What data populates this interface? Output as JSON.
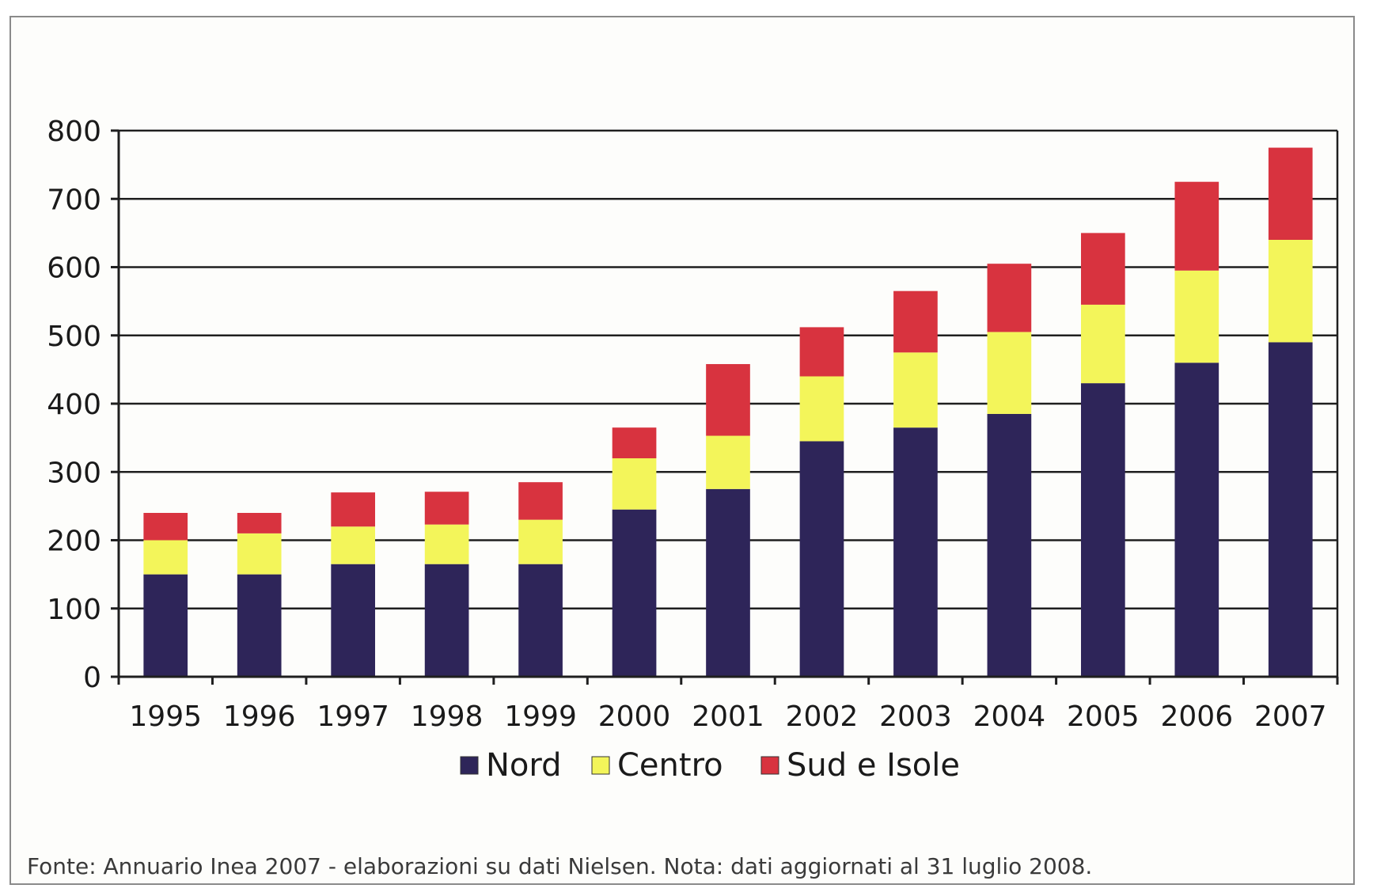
{
  "chart_data": {
    "type": "bar",
    "stacked": true,
    "categories": [
      "1995",
      "1996",
      "1997",
      "1998",
      "1999",
      "2000",
      "2001",
      "2002",
      "2003",
      "2004",
      "2005",
      "2006",
      "2007"
    ],
    "series": [
      {
        "name": "Nord",
        "color": "#2e2559",
        "values": [
          150,
          150,
          165,
          165,
          165,
          245,
          275,
          345,
          365,
          385,
          430,
          460,
          490
        ]
      },
      {
        "name": "Centro",
        "color": "#f3f55a",
        "values": [
          50,
          60,
          55,
          58,
          65,
          75,
          78,
          95,
          110,
          120,
          115,
          135,
          150
        ]
      },
      {
        "name": "Sud e Isole",
        "color": "#d8333f",
        "values": [
          40,
          30,
          50,
          48,
          55,
          45,
          105,
          72,
          90,
          100,
          105,
          130,
          135
        ]
      }
    ],
    "y_ticks": [
      "0",
      "100",
      "200",
      "300",
      "400",
      "500",
      "600",
      "700",
      "800"
    ],
    "ylim": [
      0,
      800
    ],
    "grid": true,
    "legend_position": "bottom-center"
  },
  "footer": "Fonte: Annuario Inea 2007 - elaborazioni su dati Nielsen. Nota: dati aggiornati al 31 luglio 2008."
}
